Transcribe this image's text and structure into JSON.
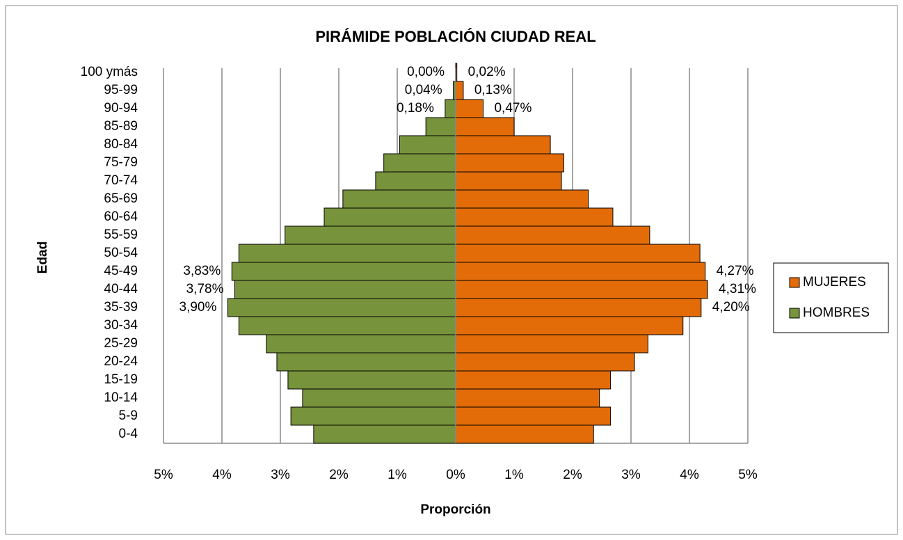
{
  "chart_data": {
    "type": "pyramid",
    "title": "PIRÁMIDE POBLACIÓN CIUDAD REAL",
    "x_label": "Proporción",
    "y_label": "Edad",
    "categories": [
      "0-4",
      "5-9",
      "10-14",
      "15-19",
      "20-24",
      "25-29",
      "30-34",
      "35-39",
      "40-44",
      "45-49",
      "50-54",
      "55-59",
      "60-64",
      "65-69",
      "70-74",
      "75-79",
      "80-84",
      "85-89",
      "90-94",
      "95-99",
      "100 ymás"
    ],
    "series": [
      {
        "name": "MUJERES",
        "color": "#e36c09",
        "side": "right",
        "values": [
          2.36,
          2.65,
          2.46,
          2.65,
          3.06,
          3.29,
          3.89,
          4.2,
          4.31,
          4.27,
          4.18,
          3.32,
          2.69,
          2.27,
          1.81,
          1.85,
          1.62,
          1.0,
          0.47,
          0.13,
          0.02
        ],
        "value_labels": [
          null,
          null,
          null,
          null,
          null,
          null,
          null,
          "4,20%",
          "4,31%",
          "4,27%",
          null,
          null,
          null,
          null,
          null,
          null,
          null,
          null,
          "0,47%",
          "0,13%",
          "0,02%"
        ]
      },
      {
        "name": "HOMBRES",
        "color": "#77933c",
        "side": "left",
        "values": [
          2.43,
          2.82,
          2.62,
          2.87,
          3.06,
          3.24,
          3.71,
          3.9,
          3.78,
          3.83,
          3.71,
          2.92,
          2.25,
          1.93,
          1.37,
          1.23,
          0.96,
          0.51,
          0.18,
          0.04,
          0.0
        ],
        "value_labels": [
          null,
          null,
          null,
          null,
          null,
          null,
          null,
          "3,90%",
          "3,78%",
          "3,83%",
          null,
          null,
          null,
          null,
          null,
          null,
          null,
          null,
          "0,18%",
          "0,04%",
          "0,00%"
        ]
      }
    ],
    "xlim": [
      -5,
      5
    ],
    "xticks": [
      {
        "value": -5,
        "label": "5%"
      },
      {
        "value": -4,
        "label": "4%"
      },
      {
        "value": -3,
        "label": "3%"
      },
      {
        "value": -2,
        "label": "2%"
      },
      {
        "value": -1,
        "label": "1%"
      },
      {
        "value": 0,
        "label": "0%"
      },
      {
        "value": 1,
        "label": "1%"
      },
      {
        "value": 2,
        "label": "2%"
      },
      {
        "value": 3,
        "label": "3%"
      },
      {
        "value": 4,
        "label": "4%"
      },
      {
        "value": 5,
        "label": "5%"
      }
    ],
    "grid": true,
    "legend": "right"
  }
}
